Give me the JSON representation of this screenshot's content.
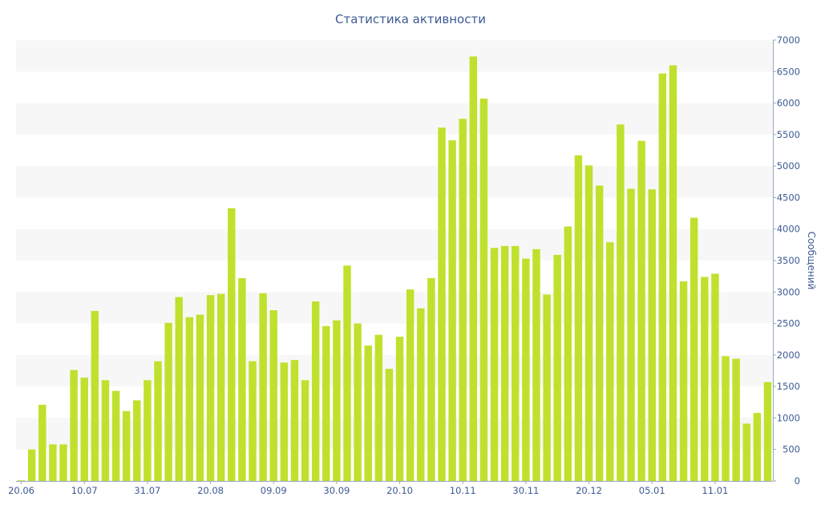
{
  "chart_data": {
    "type": "bar",
    "title": "Статистика активности",
    "xlabel": "",
    "ylabel": "Сообщений",
    "y_axis_position": "right",
    "ylim": [
      0,
      7000
    ],
    "yticks": [
      0,
      500,
      1000,
      1500,
      2000,
      2500,
      3000,
      3500,
      4000,
      4500,
      5000,
      5500,
      6000,
      6500,
      7000
    ],
    "x_tick_labels": [
      "20.06",
      "10.07",
      "31.07",
      "20.08",
      "09.09",
      "30.09",
      "20.10",
      "10.11",
      "30.11",
      "20.12",
      "05.01",
      "11.01"
    ],
    "x_tick_bar_index": [
      0,
      6,
      12,
      18,
      24,
      30,
      36,
      42,
      48,
      54,
      60,
      66
    ],
    "grid": "alternating horizontal bands",
    "bar_color": "#bfe12d",
    "band_color": "#f7f7f7",
    "values": [
      10,
      500,
      1210,
      580,
      580,
      1760,
      1640,
      2700,
      1600,
      1430,
      1110,
      1280,
      1600,
      1900,
      2510,
      2920,
      2600,
      2640,
      2950,
      2970,
      4330,
      3220,
      1900,
      2980,
      2710,
      1880,
      1920,
      1600,
      2850,
      2460,
      2550,
      3420,
      2500,
      2150,
      2320,
      1780,
      2290,
      3040,
      2740,
      3220,
      5610,
      5410,
      5750,
      6740,
      6070,
      3700,
      3730,
      3730,
      3530,
      3680,
      2960,
      3590,
      4040,
      5170,
      5010,
      4690,
      3790,
      5660,
      4640,
      5400,
      4630,
      6470,
      6600,
      3170,
      4180,
      3240,
      3290,
      1980,
      1940,
      910,
      1080,
      1570
    ]
  }
}
